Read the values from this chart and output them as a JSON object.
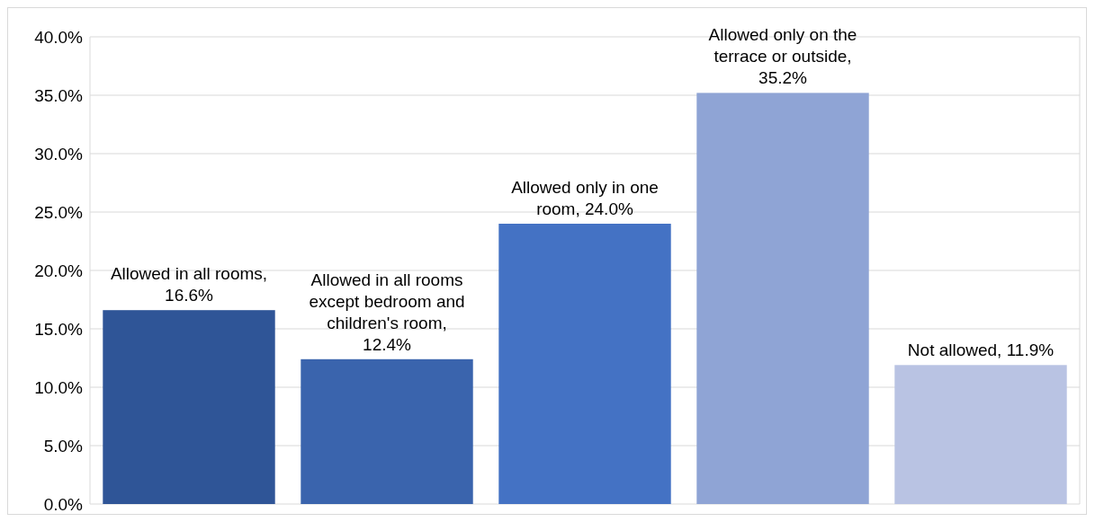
{
  "chart_data": {
    "type": "bar",
    "categories": [
      null,
      null,
      null,
      null,
      null
    ],
    "values": [
      16.6,
      12.4,
      24.0,
      35.2,
      11.9
    ],
    "value_labels": [
      "Allowed in all rooms, 16.6%",
      "Allowed in all rooms except bedroom and children's room, 12.4%",
      "Allowed only in one room, 24.0%",
      "Allowed only on the terrace or outside, 35.2%",
      "Not allowed, 11.9%"
    ],
    "colors": [
      "#2f5597",
      "#3a64ad",
      "#4472c4",
      "#8fa4d5",
      "#b9c3e3"
    ],
    "ylim": [
      0,
      40
    ],
    "yticks": [
      {
        "value": 0,
        "label": "0.0%"
      },
      {
        "value": 5,
        "label": "5.0%"
      },
      {
        "value": 10,
        "label": "10.0%"
      },
      {
        "value": 15,
        "label": "15.0%"
      },
      {
        "value": 20,
        "label": "20.0%"
      },
      {
        "value": 25,
        "label": "25.0%"
      },
      {
        "value": 30,
        "label": "30.0%"
      },
      {
        "value": 35,
        "label": "35.0%"
      },
      {
        "value": 40,
        "label": "40.0%"
      }
    ],
    "grid": "y",
    "tick_labels": "y"
  }
}
